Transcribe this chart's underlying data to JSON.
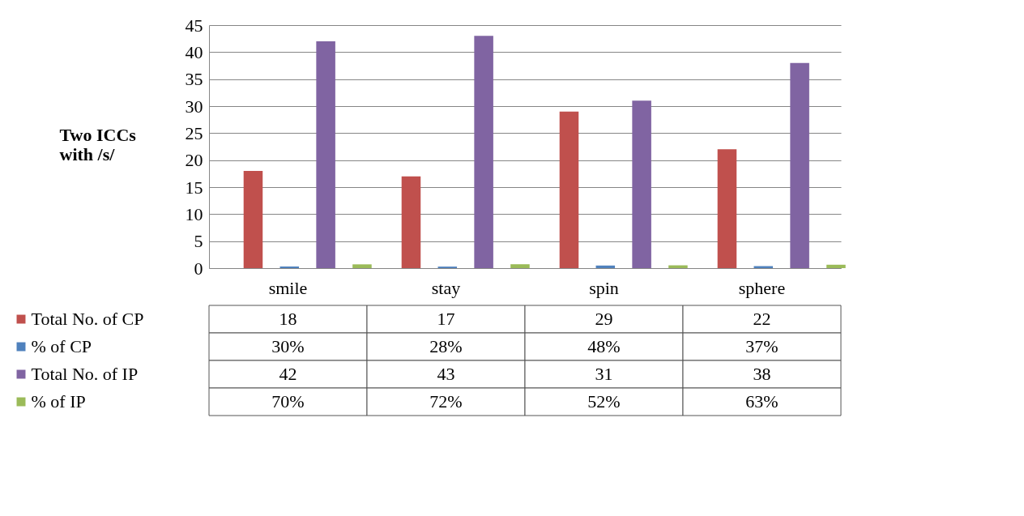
{
  "chart_data": {
    "type": "bar",
    "ylabel": "Two ICCs\nwith /s/",
    "categories": [
      "smile",
      "stay",
      "spin",
      "sphere"
    ],
    "ylim": [
      0,
      45
    ],
    "legend": "bottom left",
    "yticks": [
      0,
      5,
      10,
      15,
      20,
      25,
      30,
      35,
      40,
      45
    ],
    "grid": "y",
    "series": [
      {
        "name": "Total No. of CP",
        "color": "#c0504d",
        "values": [
          18,
          17,
          29,
          22
        ],
        "value_labels": [
          "18",
          "17",
          "29",
          "22"
        ]
      },
      {
        "name": "% of CP",
        "color": "#4f81bd",
        "values": [
          0.3,
          0.28,
          0.48,
          0.37
        ],
        "value_labels": [
          "30%",
          "28%",
          "48%",
          "37%"
        ]
      },
      {
        "name": "Total No. of IP",
        "color": "#8064a2",
        "values": [
          42,
          43,
          31,
          38
        ],
        "value_labels": [
          "42",
          "43",
          "31",
          "38"
        ]
      },
      {
        "name": "% of IP",
        "color": "#9bbb59",
        "values": [
          0.7,
          0.72,
          0.52,
          0.63
        ],
        "value_labels": [
          "70%",
          "72%",
          "52%",
          "63%"
        ]
      }
    ]
  }
}
